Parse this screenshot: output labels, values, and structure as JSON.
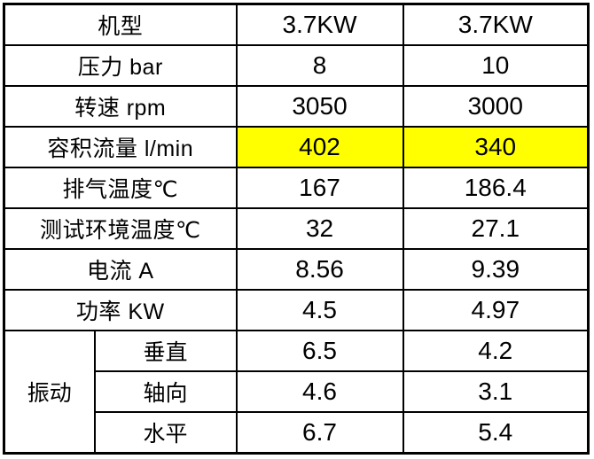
{
  "table": {
    "highlight_color": "#FFFF00",
    "border_color": "#000000",
    "rows": [
      {
        "label": "机型",
        "values": [
          "3.7KW",
          "3.7KW"
        ]
      },
      {
        "label": "压力 bar",
        "values": [
          "8",
          "10"
        ]
      },
      {
        "label": "转速 rpm",
        "values": [
          "3050",
          "3000"
        ]
      },
      {
        "label": "容积流量 l/min",
        "values": [
          "402",
          "340"
        ],
        "highlight": true
      },
      {
        "label": "排气温度℃",
        "values": [
          "167",
          "186.4"
        ]
      },
      {
        "label": "测试环境温度℃",
        "values": [
          "32",
          "27.1"
        ]
      },
      {
        "label": "电流 A",
        "values": [
          "8.56",
          "9.39"
        ]
      },
      {
        "label": "功率 KW",
        "values": [
          "4.5",
          "4.97"
        ]
      }
    ],
    "vibration": {
      "label": "振动",
      "rows": [
        {
          "axis": "垂直",
          "values": [
            "6.5",
            "4.2"
          ]
        },
        {
          "axis": "轴向",
          "values": [
            "4.6",
            "3.1"
          ]
        },
        {
          "axis": "水平",
          "values": [
            "6.7",
            "5.4"
          ]
        }
      ]
    }
  }
}
